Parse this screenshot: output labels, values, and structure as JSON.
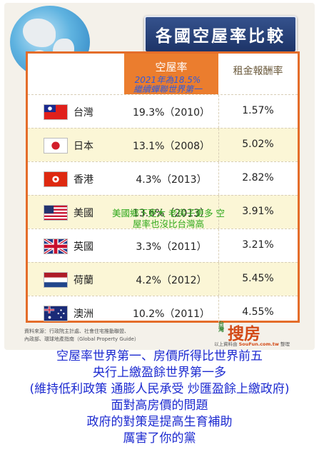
{
  "title": "各國空屋率比較",
  "table": {
    "header_rate": "空屋率",
    "header_rent": "租金報酬率",
    "rows": [
      {
        "country": "台灣",
        "rate": "19.3%（2010）",
        "rent": "1.57%",
        "flag": "taiwan-flag"
      },
      {
        "country": "日本",
        "rate": "13.1%（2008）",
        "rent": "5.02%",
        "flag": "japan-flag"
      },
      {
        "country": "香港",
        "rate": "4.3%（2013）",
        "rent": "2.82%",
        "flag": "hong-kong-flag"
      },
      {
        "country": "美國",
        "rate": "13.6%（2013）",
        "rent": "3.91%",
        "flag": "usa-flag"
      },
      {
        "country": "英國",
        "rate": "3.3%（2011）",
        "rent": "3.21%",
        "flag": "uk-flag"
      },
      {
        "country": "荷蘭",
        "rate": "4.2%（2012）",
        "rent": "5.45%",
        "flag": "netherlands-flag"
      },
      {
        "country": "澳洲",
        "rate": "10.2%（2011）",
        "rent": "4.55%",
        "flag": "australia-flag"
      }
    ]
  },
  "annotations": {
    "blue_line1": "2021年為18.5%",
    "blue_line2": "繼續蟬聯世界第一",
    "green_line1": "美國鄉下更大 老房子更多 空",
    "green_line2": "屋率也沒比台灣高"
  },
  "source": {
    "line1": "資料來源：行政院主計處、社會住宅推動聯盟、",
    "line2": "內政部、環球地產指南（Global Property Guide）",
    "credit_prefix": "以上資料由",
    "credit_brand": "SouFun.com.tw",
    "credit_suffix": "整理"
  },
  "logo": {
    "small": "台灣",
    "main": "搜房"
  },
  "caption": [
    "空屋率世界第一、房價所得比世界前五",
    "央行上繳盈餘世界第一多",
    "(維持低利政策 通膨人民承受 炒匯盈餘上繳政府)",
    "面對高房價的問題",
    "政府的對策是提高生育補助",
    "厲害了你的黨"
  ],
  "colors": {
    "accent_orange": "#eb7d2e",
    "banner_navy": "#1d3468",
    "caption_blue": "#1c2ad0",
    "note_blue": "#2d5be0",
    "note_green": "#2ea81a",
    "row_alt": "#fbf6d6"
  }
}
